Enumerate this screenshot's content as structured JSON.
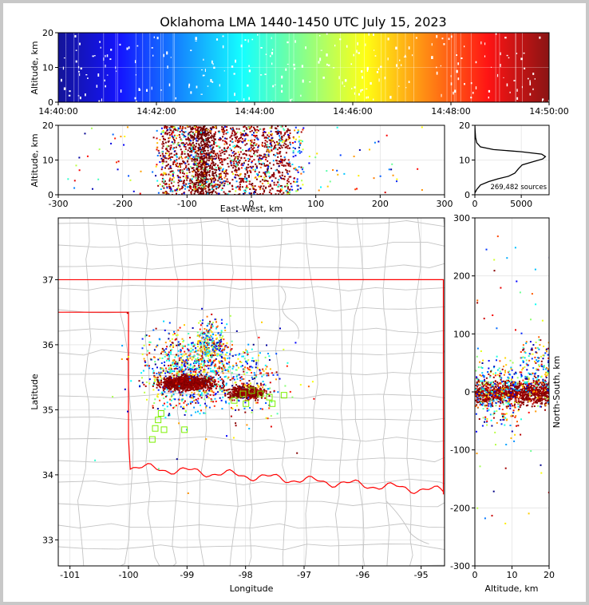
{
  "title": "Oklahoma LMA 1440-1450 UTC July 15, 2023",
  "chart_data": [
    {
      "id": "time-altitude",
      "type": "scatter",
      "ylabel": "Altitude, km",
      "x_ticks": [
        "14:40:00",
        "14:42:00",
        "14:44:00",
        "14:46:00",
        "14:48:00",
        "14:50:00"
      ],
      "y_ticks": [
        0,
        10,
        20
      ],
      "xlim_minutes": [
        0,
        10
      ],
      "ylim": [
        0,
        20
      ],
      "colormap": "jet (by time)"
    },
    {
      "id": "ew-altitude",
      "type": "scatter",
      "xlabel": "East-West, km",
      "ylabel": "Altitude, km",
      "x_ticks": [
        -300,
        -200,
        -100,
        0,
        100,
        200,
        300
      ],
      "y_ticks": [
        0,
        10,
        20
      ],
      "xlim": [
        -300,
        300
      ],
      "ylim": [
        0,
        20
      ]
    },
    {
      "id": "histogram",
      "type": "line",
      "x_ticks": [
        0,
        5000
      ],
      "y_ticks": [
        0,
        10,
        20
      ],
      "xlim": [
        0,
        8000
      ],
      "ylim": [
        0,
        20
      ],
      "annotation": "269,482 sources",
      "profile": [
        [
          0,
          0.5
        ],
        [
          200,
          1.5
        ],
        [
          600,
          2.8
        ],
        [
          1500,
          3.8
        ],
        [
          2500,
          4.6
        ],
        [
          3600,
          5.3
        ],
        [
          4300,
          6.2
        ],
        [
          4700,
          7.5
        ],
        [
          5100,
          8.6
        ],
        [
          6000,
          9.3
        ],
        [
          7300,
          10.3
        ],
        [
          7600,
          11.0
        ],
        [
          7200,
          11.7
        ],
        [
          5000,
          12.4
        ],
        [
          2000,
          13.0
        ],
        [
          600,
          13.8
        ],
        [
          200,
          15.0
        ],
        [
          80,
          16.5
        ],
        [
          30,
          18.5
        ],
        [
          0,
          20
        ]
      ]
    },
    {
      "id": "map",
      "type": "scatter",
      "xlabel": "Longitude",
      "ylabel": "Latitude",
      "x_ticks": [
        -101,
        -100,
        -99,
        -98,
        -97,
        -96,
        -95
      ],
      "y_ticks": [
        33,
        34,
        35,
        36,
        37
      ],
      "xlim": [
        -101.2,
        -94.6
      ],
      "ylim": [
        32.6,
        37.95
      ]
    },
    {
      "id": "altitude-ns",
      "type": "scatter",
      "xlabel": "Altitude, km",
      "ylabel": "North-South, km",
      "x_ticks": [
        0,
        10,
        20
      ],
      "y_ticks": [
        -300,
        -200,
        -100,
        0,
        100,
        200,
        300
      ],
      "xlim": [
        0,
        20
      ],
      "ylim": [
        -300,
        300
      ]
    }
  ]
}
